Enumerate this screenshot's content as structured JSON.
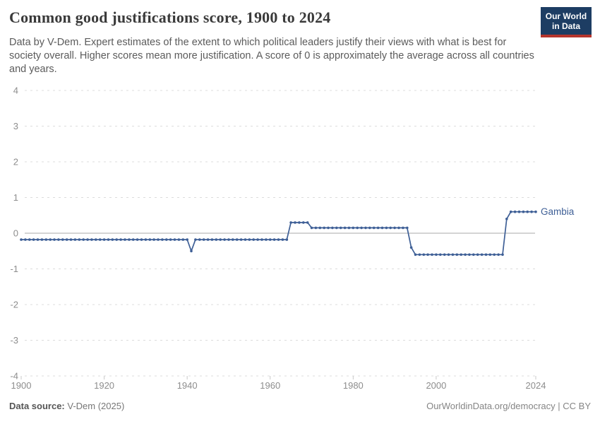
{
  "header": {
    "title": "Common good justifications score, 1900 to 2024",
    "subtitle": "Data by V-Dem. Expert estimates of the extent to which political leaders justify their views with what is best for society overall. Higher scores mean more justification. A score of 0 is approximately the average across all countries and years.",
    "logo": {
      "line1": "Our World",
      "line2": "in Data",
      "bg_color": "#1d3d63",
      "accent_color": "#b5352d"
    }
  },
  "chart_data": {
    "type": "line",
    "title": "Common good justifications score, 1900 to 2024",
    "entity_label": "Gambia",
    "xlabel": "",
    "ylabel": "",
    "xlim": [
      1900,
      2024
    ],
    "ylim": [
      -4,
      4
    ],
    "x_ticks": [
      1900,
      1920,
      1940,
      1960,
      1980,
      2000,
      2024
    ],
    "y_ticks": [
      4,
      3,
      2,
      1,
      0,
      -1,
      -2,
      -3,
      -4
    ],
    "grid": "horizontal-dashed",
    "zero_line": true,
    "legend_position": "end-of-line",
    "series": [
      {
        "name": "Gambia",
        "color": "#3e5f96",
        "point_interval_years": 1,
        "segments": [
          {
            "from": 1900,
            "to": 1940,
            "value": -0.18
          },
          {
            "from": 1941,
            "to": 1941,
            "value": -0.5
          },
          {
            "from": 1942,
            "to": 1964,
            "value": -0.18
          },
          {
            "from": 1965,
            "to": 1969,
            "value": 0.3
          },
          {
            "from": 1970,
            "to": 1993,
            "value": 0.15
          },
          {
            "from": 1994,
            "to": 1994,
            "value": -0.4
          },
          {
            "from": 1995,
            "to": 2016,
            "value": -0.6
          },
          {
            "from": 2017,
            "to": 2017,
            "value": 0.4
          },
          {
            "from": 2018,
            "to": 2024,
            "value": 0.6
          }
        ]
      }
    ],
    "colors": {
      "gridline": "#dcdcdc",
      "zero_line": "#a9a9a9",
      "tick_label": "#8d8d8d",
      "tick_mark": "#c9c9c9"
    }
  },
  "footer": {
    "source_label": "Data source:",
    "source_value": "V-Dem (2025)",
    "link": "OurWorldinData.org/democracy",
    "separator": " | ",
    "license": "CC BY"
  }
}
